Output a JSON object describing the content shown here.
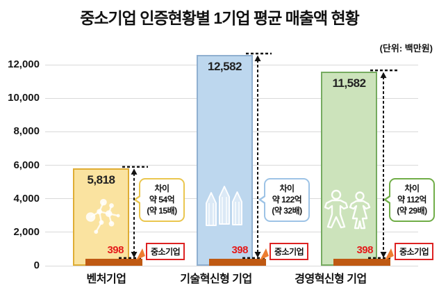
{
  "title": "중소기업 인증현황별 1기업 평균 매출액 현황",
  "unit_label": "(단위: 백만원)",
  "chart_data": {
    "type": "bar",
    "title": "중소기업 인증현황별 1기업 평균 매출액 현황",
    "unit": "백만원",
    "categories": [
      "벤처기업",
      "기술혁신형 기업",
      "경영혁신형 기업"
    ],
    "series": [
      {
        "values": [
          5818,
          12582,
          11582
        ],
        "display_labels": [
          "5,818",
          "12,582",
          "11,582"
        ]
      },
      {
        "name": "중소기업",
        "values": [
          398,
          398,
          398
        ],
        "display_labels": [
          "398",
          "398",
          "398"
        ]
      }
    ],
    "ylim": [
      0,
      12000
    ],
    "ytick_interval": 2000,
    "yticks_display": [
      "0",
      "2,000",
      "4,000",
      "6,000",
      "8,000",
      "10,000",
      "12,000"
    ],
    "grid": true,
    "legend_position": "none",
    "annotations": [
      {
        "category": "벤처기업",
        "lines": [
          "차이",
          "약 54억",
          "(약 15배)"
        ]
      },
      {
        "category": "기술혁신형 기업",
        "lines": [
          "차이",
          "약 122억",
          "(약 32배)"
        ]
      },
      {
        "category": "경영혁신형 기업",
        "lines": [
          "차이",
          "약 112억",
          "(약 29배)"
        ]
      }
    ]
  },
  "icons": [
    "molecule-icon",
    "pencils-icon",
    "people-icon"
  ],
  "colors": {
    "bar_fills": [
      "#FAE3A0",
      "#BDD7EE",
      "#CCE3BB"
    ],
    "bar_borders": [
      "#DFAD34",
      "#8FAFD0",
      "#76AB60"
    ],
    "callout_borders": [
      "#EAC64E",
      "#9DC3E6",
      "#70AD47"
    ],
    "sme_bar": "#BF5913",
    "sme_value_text": "#E41A1A",
    "sme_box_border": "#DD2222",
    "pointer_orange": "#ED7D31",
    "arrow": "#111111",
    "grid": "#D9D9D9",
    "text": "#111111"
  }
}
